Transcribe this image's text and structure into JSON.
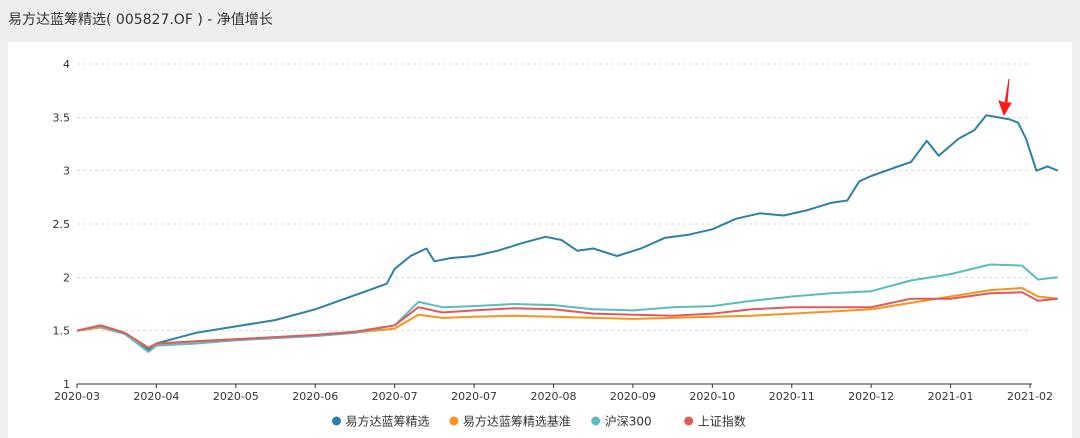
{
  "title": "易方达蓝筹精选( 005827.OF ) - 净值增长",
  "chart_data": {
    "type": "line",
    "title": "易方达蓝筹精选( 005827.OF ) - 净值增长",
    "xlabel": "",
    "ylabel": "",
    "ylim": [
      1,
      4
    ],
    "yticks": [
      "1",
      "1.5",
      "2",
      "2.5",
      "3",
      "3.5",
      "4"
    ],
    "xticks": [
      "2020-03",
      "2020-04",
      "2020-05",
      "2020-06",
      "2020-07",
      "2020-07",
      "2020-08",
      "2020-09",
      "2020-10",
      "2020-11",
      "2020-12",
      "2021-01",
      "2021-02"
    ],
    "grid": true,
    "legend_position": "bottom",
    "series": [
      {
        "name": "易方达蓝筹精选",
        "color": "#2f7fa6",
        "points": [
          [
            0,
            1.5
          ],
          [
            0.3,
            1.55
          ],
          [
            0.6,
            1.48
          ],
          [
            0.9,
            1.32
          ],
          [
            1.0,
            1.38
          ],
          [
            1.2,
            1.42
          ],
          [
            1.5,
            1.48
          ],
          [
            2.0,
            1.54
          ],
          [
            2.5,
            1.6
          ],
          [
            3.0,
            1.7
          ],
          [
            3.3,
            1.78
          ],
          [
            3.6,
            1.86
          ],
          [
            3.9,
            1.94
          ],
          [
            4.0,
            2.08
          ],
          [
            4.2,
            2.2
          ],
          [
            4.4,
            2.27
          ],
          [
            4.5,
            2.15
          ],
          [
            4.7,
            2.18
          ],
          [
            5.0,
            2.2
          ],
          [
            5.3,
            2.25
          ],
          [
            5.6,
            2.32
          ],
          [
            5.9,
            2.38
          ],
          [
            6.1,
            2.35
          ],
          [
            6.3,
            2.25
          ],
          [
            6.5,
            2.27
          ],
          [
            6.8,
            2.2
          ],
          [
            7.1,
            2.27
          ],
          [
            7.4,
            2.37
          ],
          [
            7.7,
            2.4
          ],
          [
            8.0,
            2.45
          ],
          [
            8.3,
            2.55
          ],
          [
            8.6,
            2.6
          ],
          [
            8.9,
            2.58
          ],
          [
            9.2,
            2.63
          ],
          [
            9.5,
            2.7
          ],
          [
            9.7,
            2.72
          ],
          [
            9.85,
            2.9
          ],
          [
            10.0,
            2.95
          ],
          [
            10.3,
            3.03
          ],
          [
            10.5,
            3.08
          ],
          [
            10.7,
            3.28
          ],
          [
            10.85,
            3.14
          ],
          [
            11.1,
            3.3
          ],
          [
            11.3,
            3.38
          ],
          [
            11.45,
            3.52
          ],
          [
            11.75,
            3.48
          ],
          [
            11.85,
            3.45
          ],
          [
            11.95,
            3.3
          ],
          [
            12.08,
            3.0
          ],
          [
            12.22,
            3.04
          ],
          [
            12.35,
            3.0
          ]
        ]
      },
      {
        "name": "易方达蓝筹精选基准",
        "color": "#f7931e",
        "points": [
          [
            0,
            1.5
          ],
          [
            0.3,
            1.53
          ],
          [
            0.6,
            1.47
          ],
          [
            0.9,
            1.34
          ],
          [
            1.0,
            1.37
          ],
          [
            1.5,
            1.4
          ],
          [
            2.0,
            1.42
          ],
          [
            3.0,
            1.45
          ],
          [
            3.5,
            1.48
          ],
          [
            4.0,
            1.52
          ],
          [
            4.3,
            1.65
          ],
          [
            4.6,
            1.62
          ],
          [
            5.0,
            1.63
          ],
          [
            5.5,
            1.64
          ],
          [
            6.0,
            1.63
          ],
          [
            6.5,
            1.62
          ],
          [
            7.0,
            1.61
          ],
          [
            7.5,
            1.62
          ],
          [
            8.0,
            1.63
          ],
          [
            8.5,
            1.64
          ],
          [
            9.0,
            1.66
          ],
          [
            9.5,
            1.68
          ],
          [
            10.0,
            1.7
          ],
          [
            10.5,
            1.76
          ],
          [
            11.0,
            1.82
          ],
          [
            11.5,
            1.88
          ],
          [
            11.9,
            1.9
          ],
          [
            12.1,
            1.82
          ],
          [
            12.35,
            1.8
          ]
        ]
      },
      {
        "name": "沪深300",
        "color": "#5bbcbf",
        "points": [
          [
            0,
            1.5
          ],
          [
            0.3,
            1.54
          ],
          [
            0.6,
            1.47
          ],
          [
            0.9,
            1.3
          ],
          [
            1.0,
            1.36
          ],
          [
            1.5,
            1.38
          ],
          [
            2.0,
            1.41
          ],
          [
            3.0,
            1.45
          ],
          [
            3.5,
            1.48
          ],
          [
            4.0,
            1.55
          ],
          [
            4.3,
            1.77
          ],
          [
            4.6,
            1.72
          ],
          [
            5.0,
            1.73
          ],
          [
            5.5,
            1.75
          ],
          [
            6.0,
            1.74
          ],
          [
            6.5,
            1.7
          ],
          [
            7.0,
            1.69
          ],
          [
            7.5,
            1.72
          ],
          [
            8.0,
            1.73
          ],
          [
            8.5,
            1.78
          ],
          [
            9.0,
            1.82
          ],
          [
            9.5,
            1.85
          ],
          [
            10.0,
            1.87
          ],
          [
            10.5,
            1.97
          ],
          [
            11.0,
            2.03
          ],
          [
            11.5,
            2.12
          ],
          [
            11.9,
            2.11
          ],
          [
            12.1,
            1.98
          ],
          [
            12.35,
            2.0
          ]
        ]
      },
      {
        "name": "上证指数",
        "color": "#e05a5a",
        "points": [
          [
            0,
            1.5
          ],
          [
            0.3,
            1.55
          ],
          [
            0.6,
            1.48
          ],
          [
            0.9,
            1.34
          ],
          [
            1.0,
            1.38
          ],
          [
            1.5,
            1.4
          ],
          [
            2.0,
            1.42
          ],
          [
            3.0,
            1.46
          ],
          [
            3.5,
            1.49
          ],
          [
            4.0,
            1.55
          ],
          [
            4.3,
            1.72
          ],
          [
            4.6,
            1.67
          ],
          [
            5.0,
            1.69
          ],
          [
            5.5,
            1.71
          ],
          [
            6.0,
            1.7
          ],
          [
            6.5,
            1.66
          ],
          [
            7.0,
            1.65
          ],
          [
            7.5,
            1.64
          ],
          [
            8.0,
            1.66
          ],
          [
            8.5,
            1.7
          ],
          [
            9.0,
            1.72
          ],
          [
            9.5,
            1.72
          ],
          [
            10.0,
            1.72
          ],
          [
            10.5,
            1.8
          ],
          [
            11.0,
            1.8
          ],
          [
            11.5,
            1.85
          ],
          [
            11.9,
            1.86
          ],
          [
            12.1,
            1.78
          ],
          [
            12.35,
            1.8
          ]
        ]
      }
    ]
  }
}
